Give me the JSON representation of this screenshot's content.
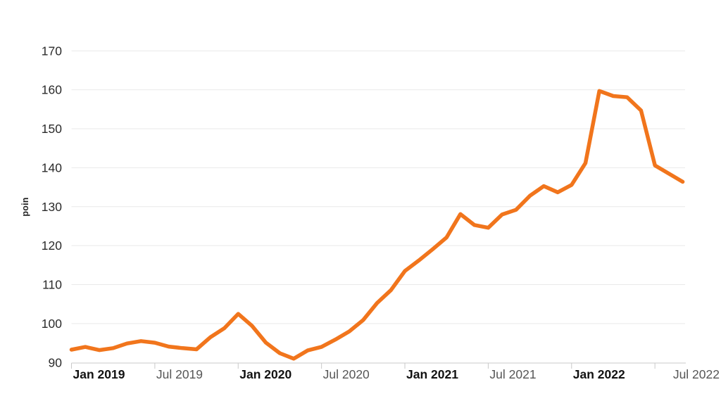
{
  "chart": {
    "y_axis_title": "poin",
    "y_ticks": [
      90,
      100,
      110,
      120,
      130,
      140,
      150,
      160,
      170
    ],
    "x_ticks": [
      {
        "label": "Jan 2019",
        "month_index": 0,
        "bold": true
      },
      {
        "label": "Jul 2019",
        "month_index": 6,
        "bold": false
      },
      {
        "label": "Jan 2020",
        "month_index": 12,
        "bold": true
      },
      {
        "label": "Jul 2020",
        "month_index": 18,
        "bold": false
      },
      {
        "label": "Jan 2021",
        "month_index": 24,
        "bold": true
      },
      {
        "label": "Jul 2021",
        "month_index": 30,
        "bold": false
      },
      {
        "label": "Jan 2022",
        "month_index": 36,
        "bold": true
      },
      {
        "label": "Jul 2022",
        "month_index": 42,
        "bold": false
      }
    ],
    "colors": {
      "line": "#F1751C",
      "gridline": "#E9E9E9",
      "axis": "#C9C9C9",
      "y_label": "#2B2B2B",
      "x_label_bold": "#121212",
      "x_label_regular": "#565656"
    }
  },
  "chart_data": {
    "type": "line",
    "title": "",
    "xlabel": "",
    "ylabel": "poin",
    "ylim": [
      90,
      170
    ],
    "grid": true,
    "legend": false,
    "x": [
      "Jan 2019",
      "Feb 2019",
      "Mar 2019",
      "Apr 2019",
      "May 2019",
      "Jun 2019",
      "Jul 2019",
      "Aug 2019",
      "Sep 2019",
      "Oct 2019",
      "Nov 2019",
      "Dec 2019",
      "Jan 2020",
      "Feb 2020",
      "Mar 2020",
      "Apr 2020",
      "May 2020",
      "Jun 2020",
      "Jul 2020",
      "Aug 2020",
      "Sep 2020",
      "Oct 2020",
      "Nov 2020",
      "Dec 2020",
      "Jan 2021",
      "Feb 2021",
      "Mar 2021",
      "Apr 2021",
      "May 2021",
      "Jun 2021",
      "Jul 2021",
      "Aug 2021",
      "Sep 2021",
      "Oct 2021",
      "Nov 2021",
      "Dec 2021",
      "Jan 2022",
      "Feb 2022",
      "Mar 2022",
      "Apr 2022",
      "May 2022",
      "Jun 2022",
      "Jul 2022",
      "Aug 2022",
      "Sep 2022"
    ],
    "values": [
      93.3,
      94.0,
      93.2,
      93.7,
      94.9,
      95.5,
      95.1,
      94.1,
      93.7,
      93.4,
      96.5,
      98.8,
      102.5,
      99.4,
      95.1,
      92.4,
      91.0,
      93.1,
      94.0,
      95.9,
      98.0,
      100.9,
      105.3,
      108.6,
      113.5,
      116.2,
      119.1,
      122.1,
      128.1,
      125.3,
      124.6,
      128.0,
      129.2,
      132.8,
      135.3,
      133.7,
      135.6,
      141.2,
      159.7,
      158.4,
      158.1,
      154.7,
      140.6,
      138.5,
      136.4
    ]
  }
}
